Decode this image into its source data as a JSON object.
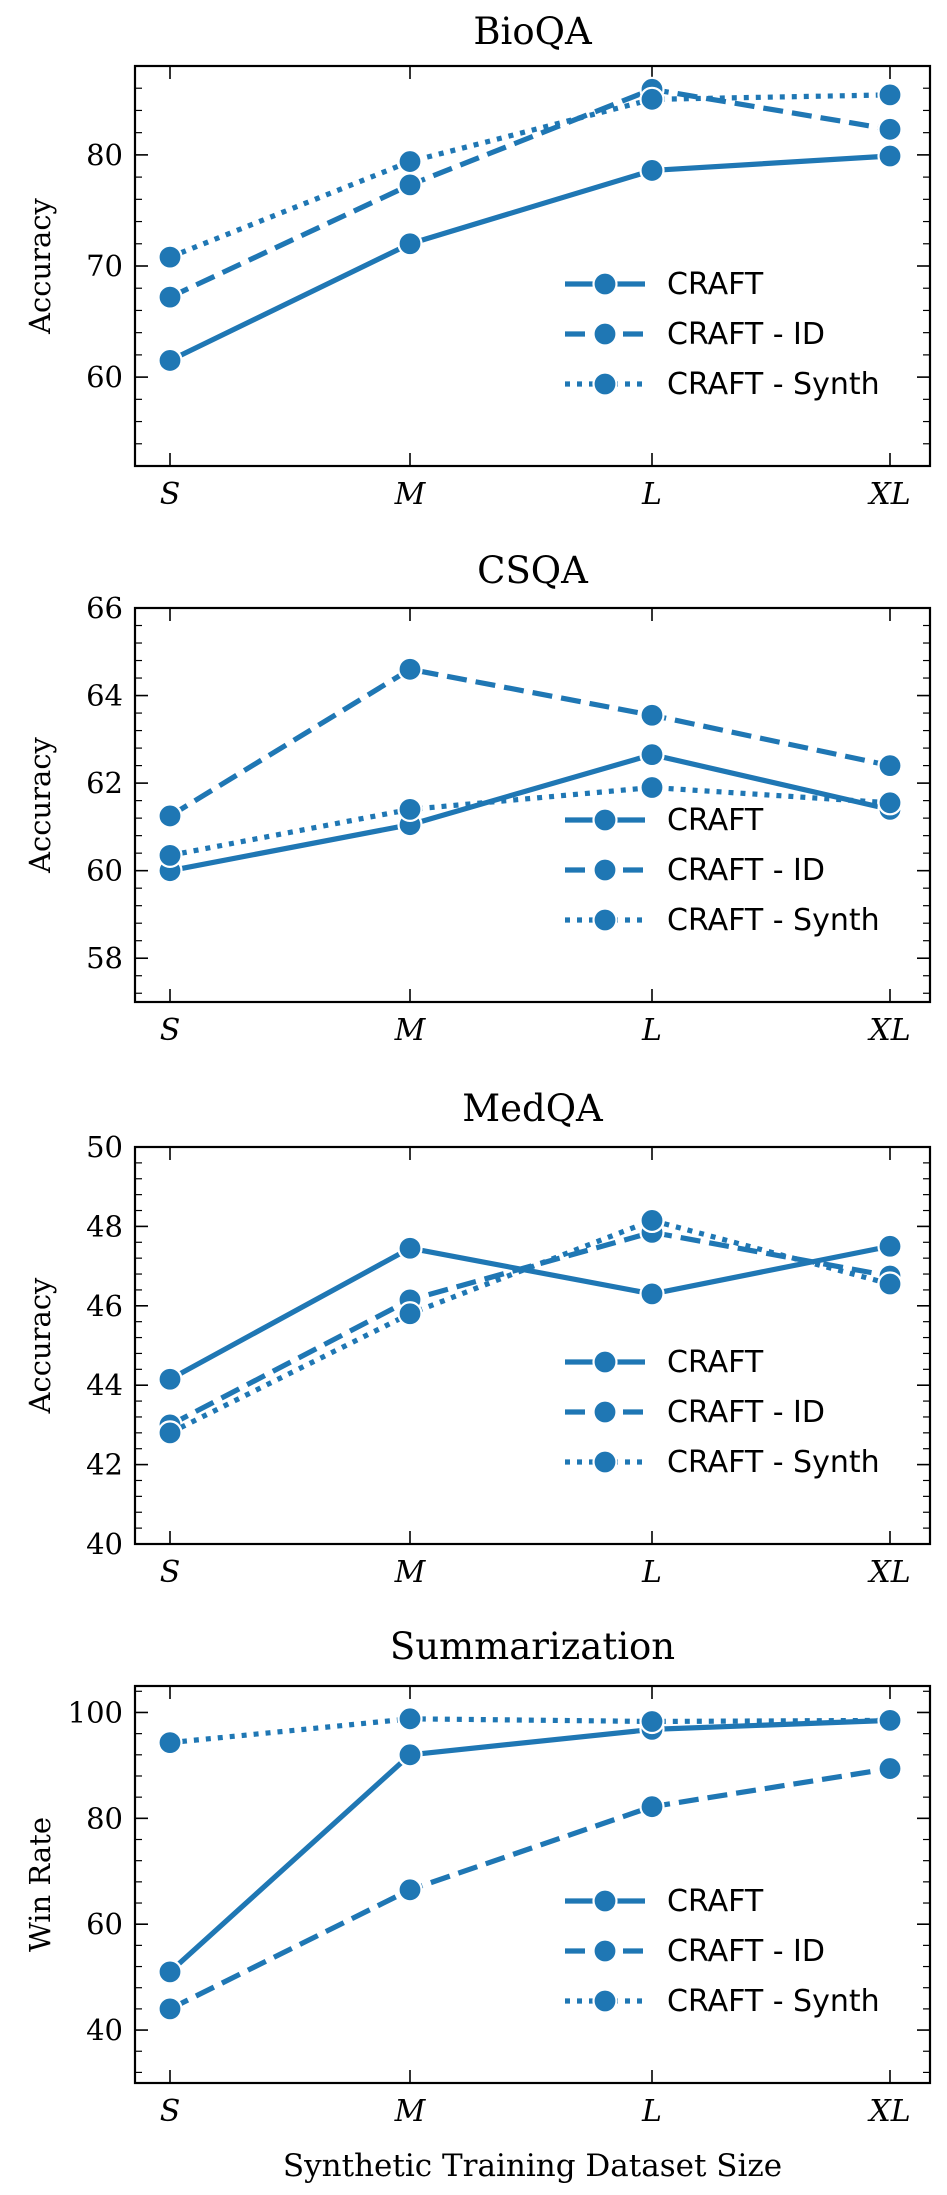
{
  "chart_data": [
    {
      "type": "line",
      "title": "BioQA",
      "ylabel": "Accuracy",
      "xlabel": "",
      "categories": [
        "S",
        "M",
        "L",
        "XL"
      ],
      "ylim": [
        52,
        88
      ],
      "yticks": [
        60,
        70,
        80
      ],
      "legend_position": "bottom-right",
      "series": [
        {
          "name": "CRAFT",
          "style": "solid",
          "values": [
            61.5,
            72.0,
            78.6,
            79.9
          ]
        },
        {
          "name": "CRAFT - ID",
          "style": "dashed",
          "values": [
            67.2,
            77.3,
            85.9,
            82.3
          ]
        },
        {
          "name": "CRAFT - Synth",
          "style": "dotted",
          "values": [
            70.8,
            79.4,
            85.0,
            85.4
          ]
        }
      ]
    },
    {
      "type": "line",
      "title": "CSQA",
      "ylabel": "Accuracy",
      "xlabel": "",
      "categories": [
        "S",
        "M",
        "L",
        "XL"
      ],
      "ylim": [
        57,
        66
      ],
      "yticks": [
        58,
        60,
        62,
        64,
        66
      ],
      "legend_position": "bottom-right",
      "series": [
        {
          "name": "CRAFT",
          "style": "solid",
          "values": [
            60.0,
            61.05,
            62.65,
            61.4
          ]
        },
        {
          "name": "CRAFT - ID",
          "style": "dashed",
          "values": [
            61.25,
            64.6,
            63.55,
            62.4
          ]
        },
        {
          "name": "CRAFT - Synth",
          "style": "dotted",
          "values": [
            60.35,
            61.4,
            61.9,
            61.55
          ]
        }
      ]
    },
    {
      "type": "line",
      "title": "MedQA",
      "ylabel": "Accuracy",
      "xlabel": "",
      "categories": [
        "S",
        "M",
        "L",
        "XL"
      ],
      "ylim": [
        40,
        50
      ],
      "yticks": [
        40,
        42,
        44,
        46,
        48,
        50
      ],
      "legend_position": "bottom-right",
      "series": [
        {
          "name": "CRAFT",
          "style": "solid",
          "values": [
            44.15,
            47.45,
            46.3,
            47.5
          ]
        },
        {
          "name": "CRAFT - ID",
          "style": "dashed",
          "values": [
            43.0,
            46.15,
            47.85,
            46.75
          ]
        },
        {
          "name": "CRAFT - Synth",
          "style": "dotted",
          "values": [
            42.8,
            45.8,
            48.15,
            46.55
          ]
        }
      ]
    },
    {
      "type": "line",
      "title": "Summarization",
      "ylabel": "Win Rate",
      "xlabel": "Synthetic Training Dataset Size",
      "categories": [
        "S",
        "M",
        "L",
        "XL"
      ],
      "ylim": [
        30,
        105
      ],
      "yticks": [
        40,
        60,
        80,
        100
      ],
      "legend_position": "bottom-right",
      "series": [
        {
          "name": "CRAFT",
          "style": "solid",
          "values": [
            51.0,
            92.0,
            96.8,
            98.5
          ]
        },
        {
          "name": "CRAFT - ID",
          "style": "dashed",
          "values": [
            44.0,
            66.5,
            82.2,
            89.4
          ]
        },
        {
          "name": "CRAFT - Synth",
          "style": "dotted",
          "values": [
            94.3,
            98.8,
            98.3,
            98.5
          ]
        }
      ]
    }
  ],
  "colors": {
    "line": "#1f77b4",
    "axis": "#000000",
    "marker_edge": "#ffffff"
  }
}
